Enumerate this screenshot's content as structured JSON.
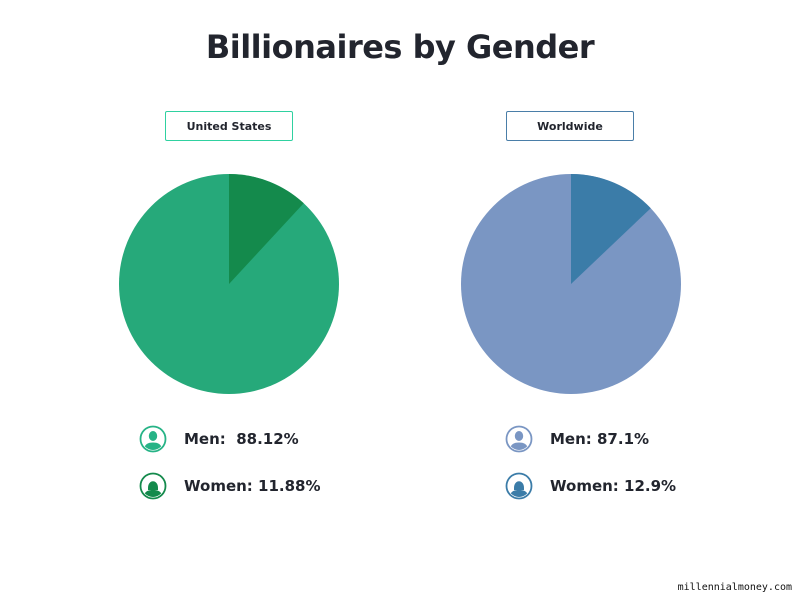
{
  "title": "Billionaires by Gender",
  "panels": [
    {
      "label": "United States",
      "border_color": "#2fd1a0",
      "men_label": "Men:  88.12%",
      "women_label": "Women: 11.88%",
      "men_color": "#26a97a",
      "women_color": "#148a4c"
    },
    {
      "label": "Worldwide",
      "border_color": "#4a7ea8",
      "men_label": "Men: 87.1%",
      "women_label": "Women: 12.9%",
      "men_color": "#7a96c3",
      "women_color": "#3b7ca8"
    }
  ],
  "footer": "millennialmoney.com",
  "chart_data": [
    {
      "type": "pie",
      "title": "United States",
      "categories": [
        "Men",
        "Women"
      ],
      "values": [
        88.12,
        11.88
      ],
      "colors": [
        "#26a97a",
        "#148a4c"
      ]
    },
    {
      "type": "pie",
      "title": "Worldwide",
      "categories": [
        "Men",
        "Women"
      ],
      "values": [
        87.1,
        12.9
      ],
      "colors": [
        "#7a96c3",
        "#3b7ca8"
      ]
    }
  ]
}
